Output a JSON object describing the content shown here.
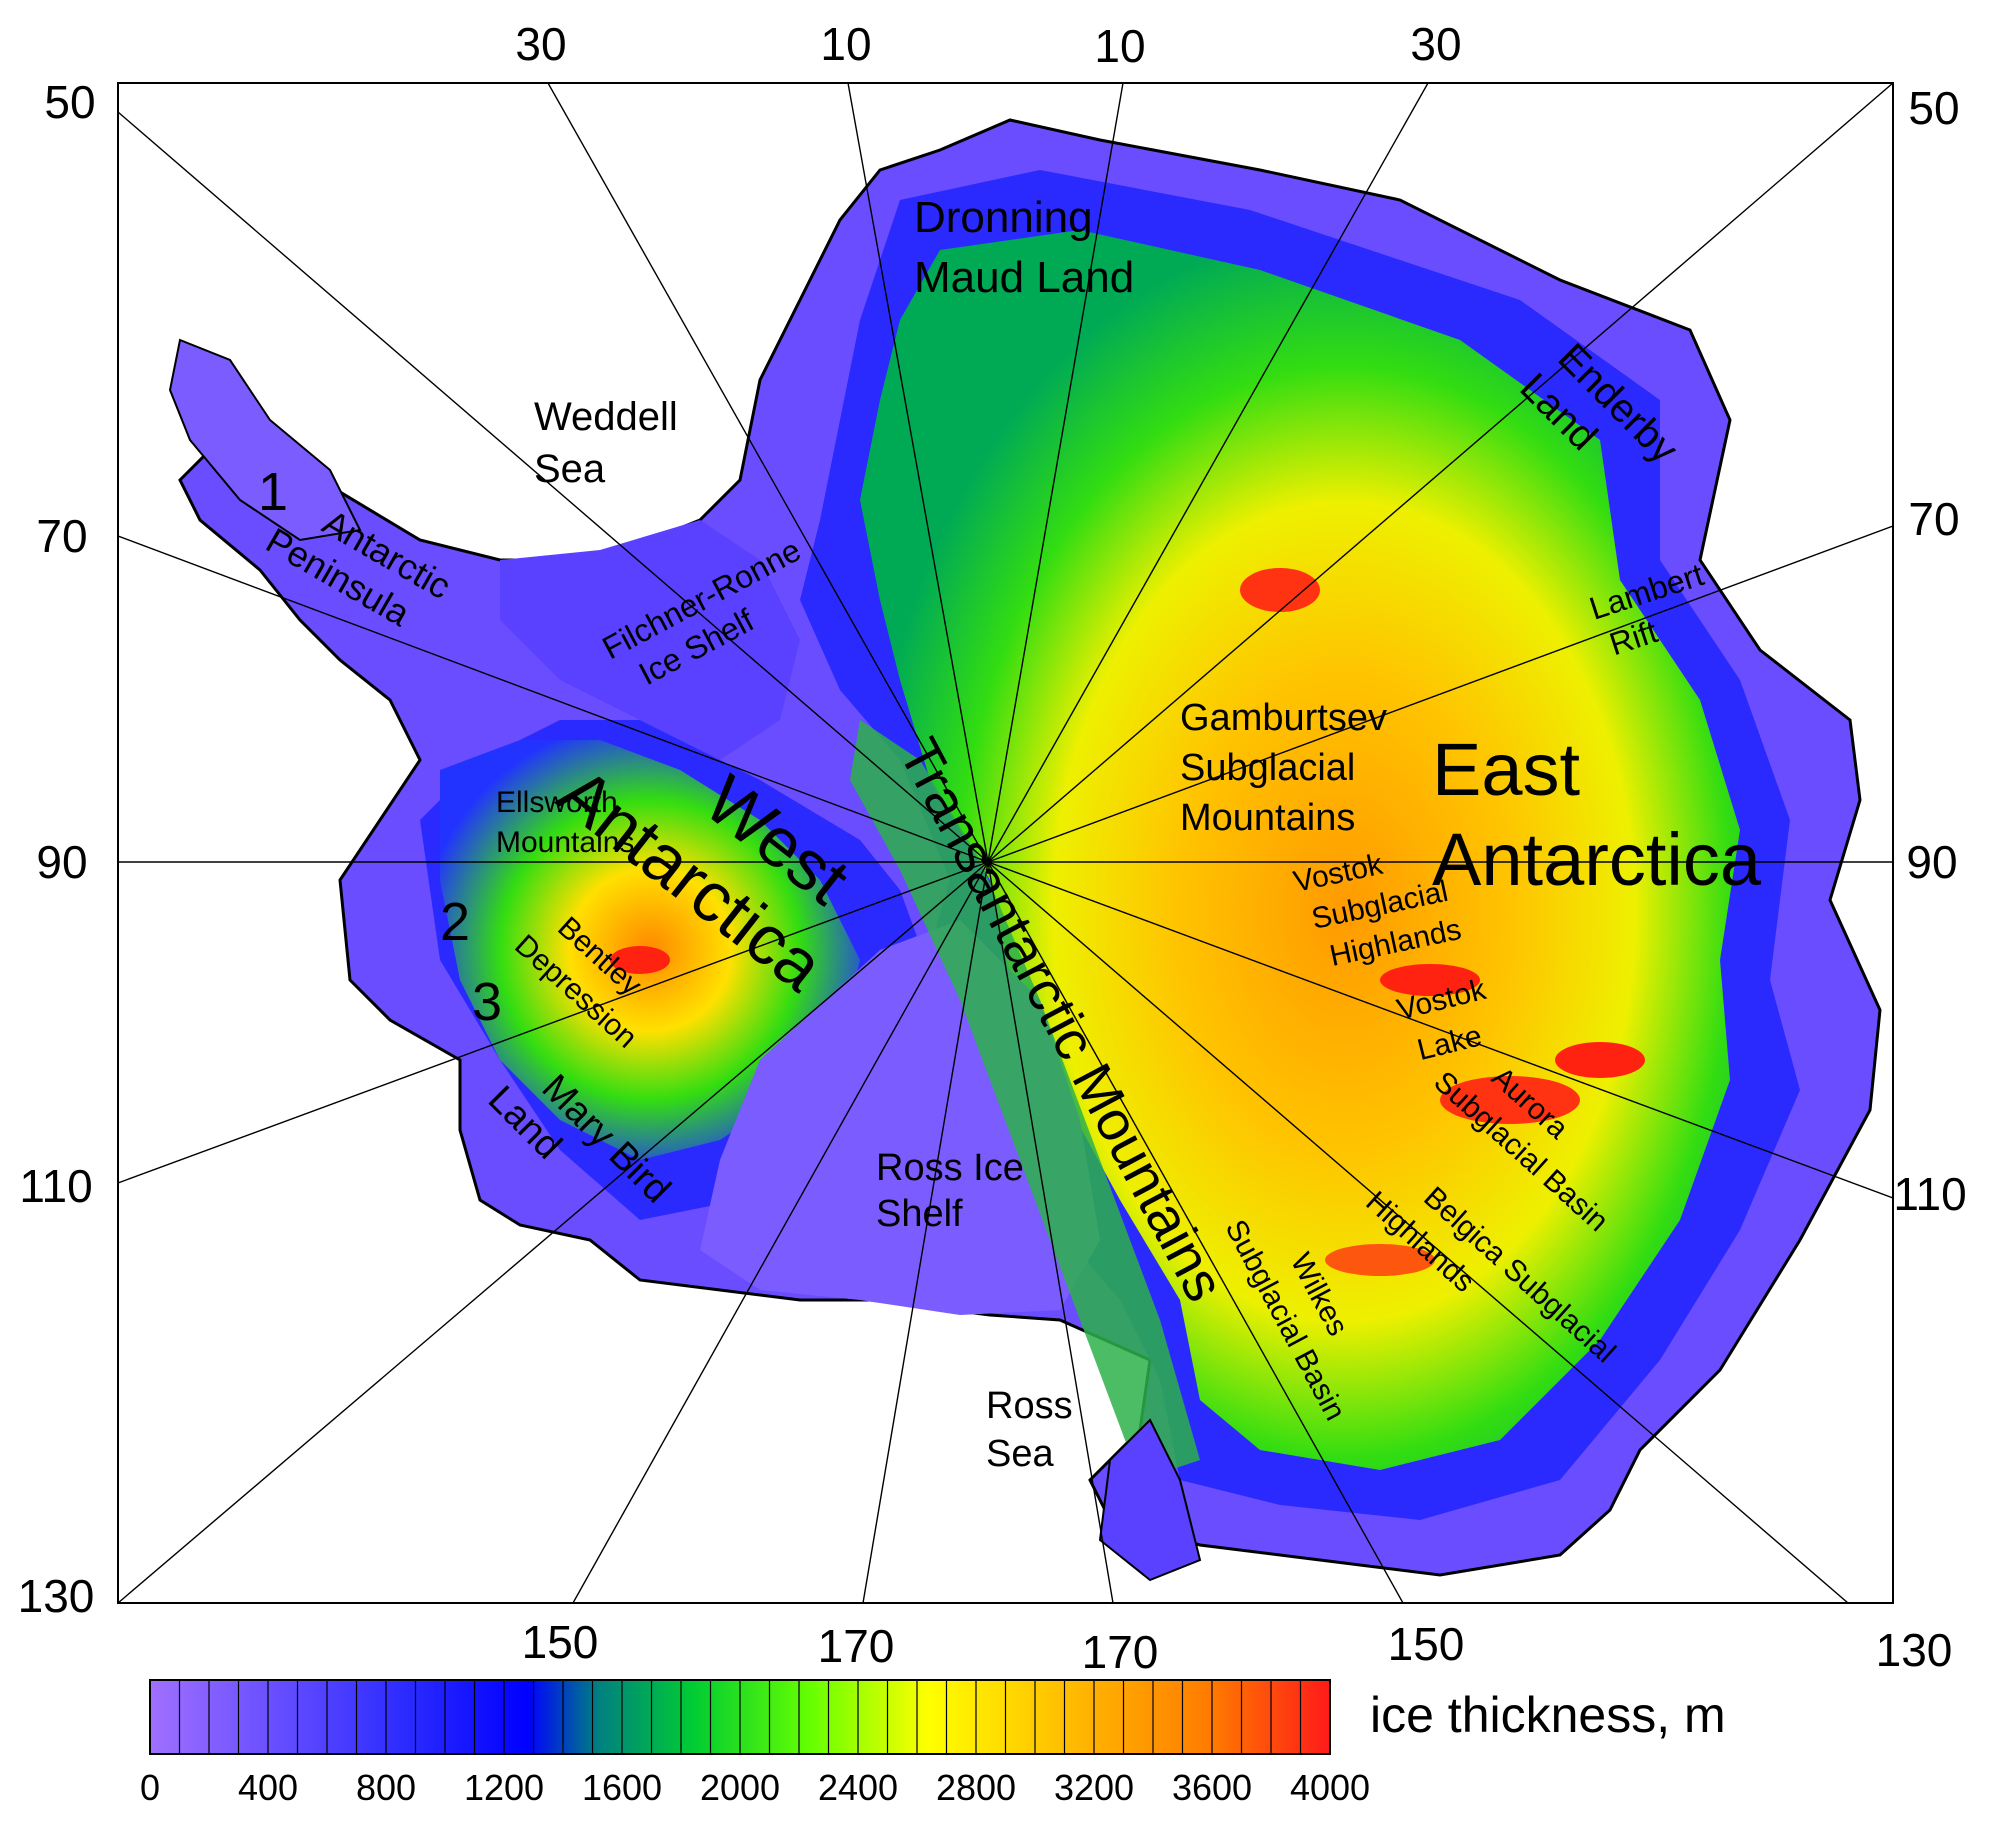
{
  "map": {
    "top_longitude_labels": [
      "30",
      "10",
      "10",
      "30"
    ],
    "bottom_longitude_labels": [
      "150",
      "170",
      "170",
      "150",
      "130"
    ],
    "left_latitude_labels": [
      "50",
      "70",
      "90",
      "110",
      "130"
    ],
    "right_latitude_labels": [
      "50",
      "70",
      "90",
      "110"
    ],
    "regions": {
      "dronning": [
        "Dronning",
        "Maud Land"
      ],
      "weddell": [
        "Weddell",
        "Sea"
      ],
      "enderby": [
        "Enderby",
        "Land"
      ],
      "peninsula_number": "1",
      "antarctic_peninsula": [
        "Antarctic",
        "Peninsula"
      ],
      "filchner": [
        "Filchner-Ronne",
        "Ice Shelf"
      ],
      "lambert": [
        "Lambert",
        "Rift"
      ],
      "gamburtsev": [
        "Gamburtsev",
        "Subglacial",
        "Mountains"
      ],
      "east_antarctica": [
        "East",
        "Antarctica"
      ],
      "ellsworth": [
        "Ellsworth",
        "Mountains"
      ],
      "west_antarctica": [
        "West",
        "Antarctica"
      ],
      "transantarctic": "Transantarctic Mountains",
      "vostok_highlands": [
        "Vostok",
        "Subglacial",
        "Highlands"
      ],
      "vostok_lake": [
        "Vostok",
        "Lake"
      ],
      "number_2": "2",
      "number_3": "3",
      "bentley": [
        "Bentley",
        "Depression"
      ],
      "aurora": [
        "Aurora",
        "Subglacial Basin"
      ],
      "marie_byrd": [
        "Mary Bird",
        "Land"
      ],
      "ross_ice_shelf": [
        "Ross Ice",
        "Shelf"
      ],
      "belgica": [
        "Belgica Subglacial",
        "Highlands"
      ],
      "wilkes": [
        "Wilkes",
        "Subglacial Basin"
      ],
      "ross_sea": [
        "Ross",
        "Sea"
      ]
    }
  },
  "legend": {
    "title": "ice thickness, m",
    "min": 0,
    "max": 4000,
    "step": 100,
    "tick_labels": [
      "0",
      "400",
      "800",
      "1200",
      "1600",
      "2000",
      "2400",
      "2800",
      "3200",
      "3600",
      "4000"
    ]
  },
  "colors": {
    "low": "#9966ff",
    "mid_low": "#1a1aff",
    "mid": "#00aa66",
    "green": "#33dd11",
    "yellow": "#ffff00",
    "orange": "#ff9900",
    "high": "#ff1a1a",
    "ocean": "#ffffff",
    "line": "#000000"
  }
}
